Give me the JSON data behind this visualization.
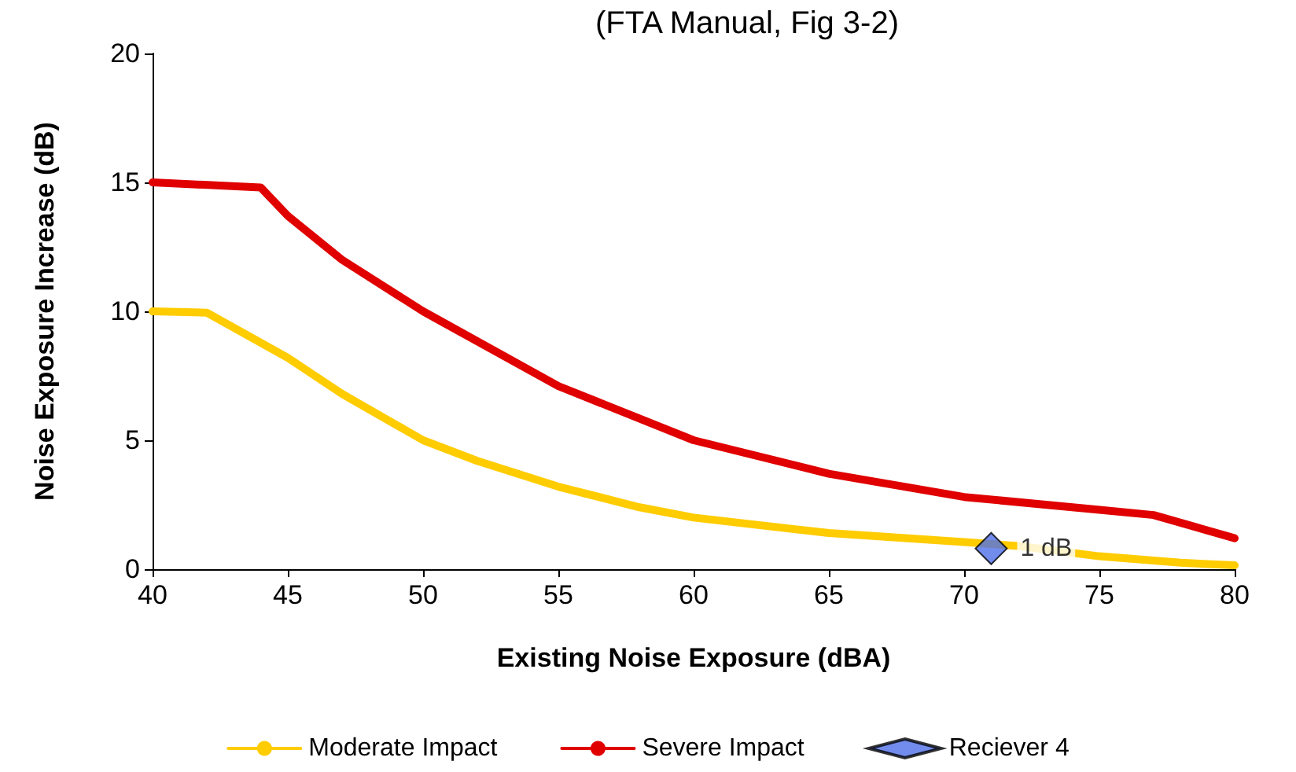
{
  "chart_data": {
    "type": "line",
    "title": "(FTA Manual, Fig 3-2)",
    "xlabel": "Existing Noise Exposure (dBA)",
    "ylabel": "Noise Exposure Increase (dB)",
    "xlim": [
      40,
      80
    ],
    "xticks": [
      40,
      45,
      50,
      55,
      60,
      65,
      70,
      75,
      80
    ],
    "ylim": [
      0,
      20
    ],
    "yticks": [
      0,
      5,
      10,
      15,
      20
    ],
    "grid": false,
    "legend": "bottom",
    "line_style": "solid",
    "series": [
      {
        "name": "Moderate Impact",
        "color": "#ffcc00",
        "marker": "none",
        "x": [
          40,
          42,
          45,
          47,
          50,
          52,
          55,
          58,
          60,
          65,
          70,
          72,
          75,
          78,
          80
        ],
        "values": [
          10,
          9.95,
          8.2,
          6.8,
          5,
          4.2,
          3.2,
          2.4,
          2,
          1.4,
          1.05,
          0.9,
          0.5,
          0.25,
          0.15
        ]
      },
      {
        "name": "Severe Impact",
        "color": "#e00000",
        "marker": "none",
        "x": [
          40,
          44,
          45,
          47,
          50,
          55,
          60,
          65,
          70,
          75,
          77,
          80
        ],
        "values": [
          15,
          14.8,
          13.7,
          12,
          10,
          7.1,
          5,
          3.7,
          2.8,
          2.3,
          2.1,
          1.2
        ]
      },
      {
        "name": "Reciever 4",
        "type": "scatter",
        "color": "#4f6fe8",
        "marker": "diamond",
        "x": [
          71
        ],
        "values": [
          0.8
        ],
        "value_labels": [
          "1 dB"
        ]
      }
    ]
  }
}
